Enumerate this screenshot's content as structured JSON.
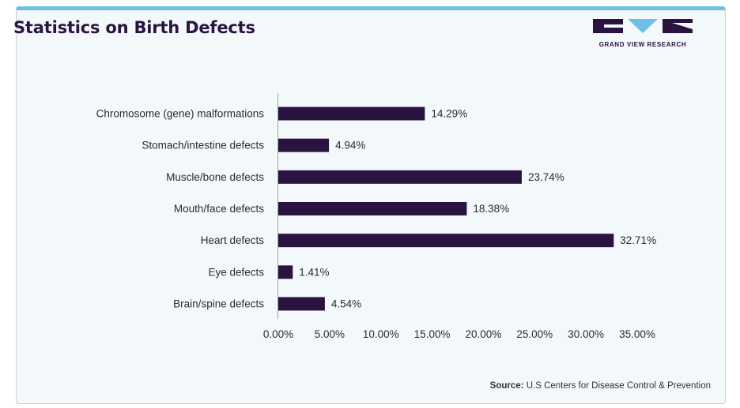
{
  "header": {
    "title": "Statistics on Birth Defects",
    "logo_text": "GRAND VIEW RESEARCH"
  },
  "footer": {
    "source_label": "Source:",
    "source_text": "U.S Centers for Disease Control & Prevention"
  },
  "colors": {
    "bar": "#2a1340",
    "accent": "#6ec0e6",
    "background": "#f3f8fb"
  },
  "chart_data": {
    "type": "bar",
    "orientation": "horizontal",
    "title": "Statistics on Birth Defects",
    "xlabel": "",
    "ylabel": "",
    "categories": [
      "Chromosome (gene) malformations",
      "Stomach/intestine defects",
      "Muscle/bone defects",
      "Mouth/face defects",
      "Heart defects",
      "Eye defects",
      "Brain/spine defects"
    ],
    "values": [
      14.29,
      4.94,
      23.74,
      18.38,
      32.71,
      1.41,
      4.54
    ],
    "data_labels": [
      "14.29%",
      "4.94%",
      "23.74%",
      "18.38%",
      "32.71%",
      "1.41%",
      "4.54%"
    ],
    "xlim": [
      0,
      35
    ],
    "xticks": [
      0,
      5,
      10,
      15,
      20,
      25,
      30,
      35
    ],
    "xtick_labels": [
      "0.00%",
      "5.00%",
      "10.00%",
      "15.00%",
      "20.00%",
      "25.00%",
      "30.00%",
      "35.00%"
    ],
    "grid": false,
    "legend": "none"
  }
}
